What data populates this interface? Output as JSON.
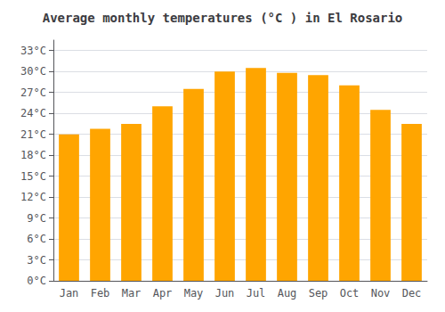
{
  "chart_data": {
    "type": "bar",
    "title": "Average monthly temperatures (°C ) in El Rosario",
    "categories": [
      "Jan",
      "Feb",
      "Mar",
      "Apr",
      "May",
      "Jun",
      "Jul",
      "Aug",
      "Sep",
      "Oct",
      "Nov",
      "Dec"
    ],
    "values": [
      21.0,
      21.8,
      22.5,
      25.0,
      27.5,
      30.0,
      30.5,
      29.8,
      29.5,
      28.0,
      24.5,
      22.5
    ],
    "color": "#FFA500",
    "ylim": [
      0,
      34.5
    ],
    "yticks": [
      {
        "value": 0,
        "label": "0°C"
      },
      {
        "value": 3,
        "label": "3°C"
      },
      {
        "value": 6,
        "label": "6°C"
      },
      {
        "value": 9,
        "label": "9°C"
      },
      {
        "value": 12,
        "label": "12°C"
      },
      {
        "value": 15,
        "label": "15°C"
      },
      {
        "value": 18,
        "label": "18°C"
      },
      {
        "value": 21,
        "label": "21°C"
      },
      {
        "value": 24,
        "label": "24°C"
      },
      {
        "value": 27,
        "label": "27°C"
      },
      {
        "value": 30,
        "label": "30°C"
      },
      {
        "value": 33,
        "label": "33°C"
      }
    ],
    "grid": true
  }
}
